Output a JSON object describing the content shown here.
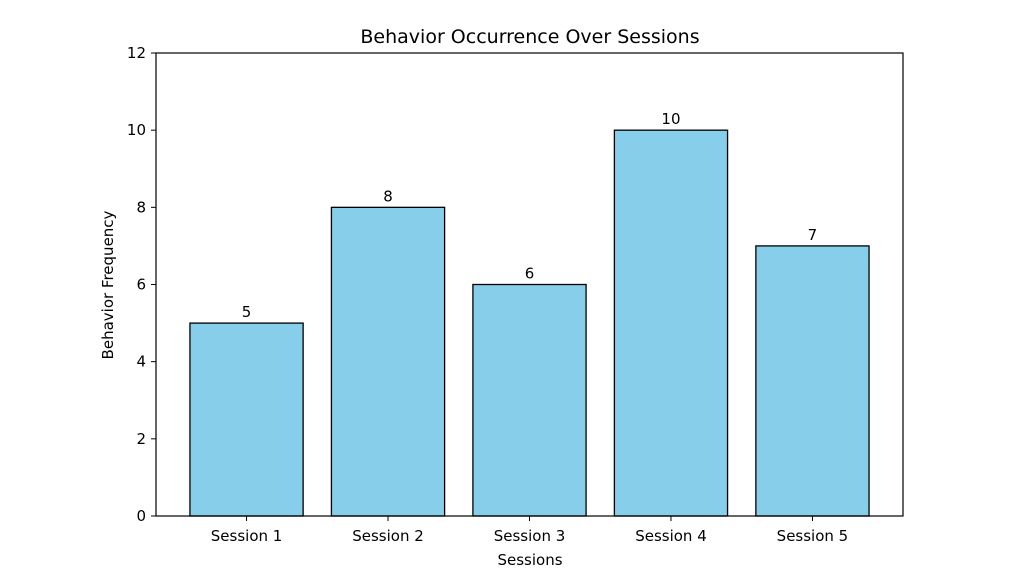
{
  "chart_data": {
    "type": "bar",
    "title": "Behavior Occurrence Over Sessions",
    "xlabel": "Sessions",
    "ylabel": "Behavior Frequency",
    "categories": [
      "Session 1",
      "Session 2",
      "Session 3",
      "Session 4",
      "Session 5"
    ],
    "values": [
      5,
      8,
      6,
      10,
      7
    ],
    "data_labels": [
      "5",
      "8",
      "6",
      "10",
      "7"
    ],
    "ylim": [
      0,
      12
    ],
    "yticks": [
      0,
      2,
      4,
      6,
      8,
      10,
      12
    ],
    "ytick_labels": [
      "0",
      "2",
      "4",
      "6",
      "8",
      "10",
      "12"
    ],
    "grid": false,
    "legend": "none",
    "colors": {
      "bar_fill": "#87CEEB",
      "bar_edge": "#000000",
      "axis": "#000000",
      "background": "#ffffff"
    }
  }
}
